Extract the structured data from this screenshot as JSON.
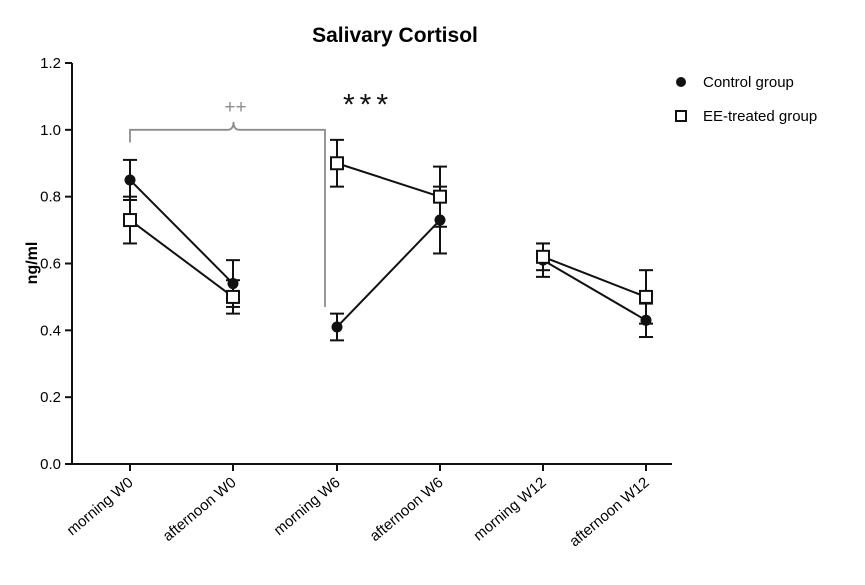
{
  "chart_data": {
    "type": "line",
    "title": "Salivary Cortisol",
    "xlabel": "",
    "ylabel": "ng/ml",
    "ylim": [
      0,
      1.2
    ],
    "yticks": [
      "0.0",
      "0.2",
      "0.4",
      "0.6",
      "0.8",
      "1.0",
      "1.2"
    ],
    "categories": [
      "morning W0",
      "afternoon W0",
      "morning W6",
      "afternoon W6",
      "morning W12",
      "afternoon W12"
    ],
    "connected_pairs": [
      [
        0,
        1
      ],
      [
        2,
        3
      ],
      [
        4,
        5
      ]
    ],
    "series": [
      {
        "name": "Control group",
        "marker": "filled-circle",
        "values": [
          0.85,
          0.54,
          0.41,
          0.73,
          0.61,
          0.43
        ],
        "error": [
          0.06,
          0.07,
          0.04,
          0.1,
          0.05,
          0.05
        ]
      },
      {
        "name": "EE-treated group",
        "marker": "open-square",
        "values": [
          0.73,
          0.5,
          0.9,
          0.8,
          0.62,
          0.5
        ],
        "error": [
          0.07,
          0.05,
          0.07,
          0.09,
          0.04,
          0.08
        ]
      }
    ],
    "annotations": [
      {
        "text": "++",
        "color": "#8c8c8c",
        "type": "bracket",
        "from_category": 0,
        "to_category": 2
      },
      {
        "text": "***",
        "color": "#111111",
        "at_category": 2,
        "y": 1.07
      }
    ],
    "legend": "top-right",
    "grid": false
  }
}
